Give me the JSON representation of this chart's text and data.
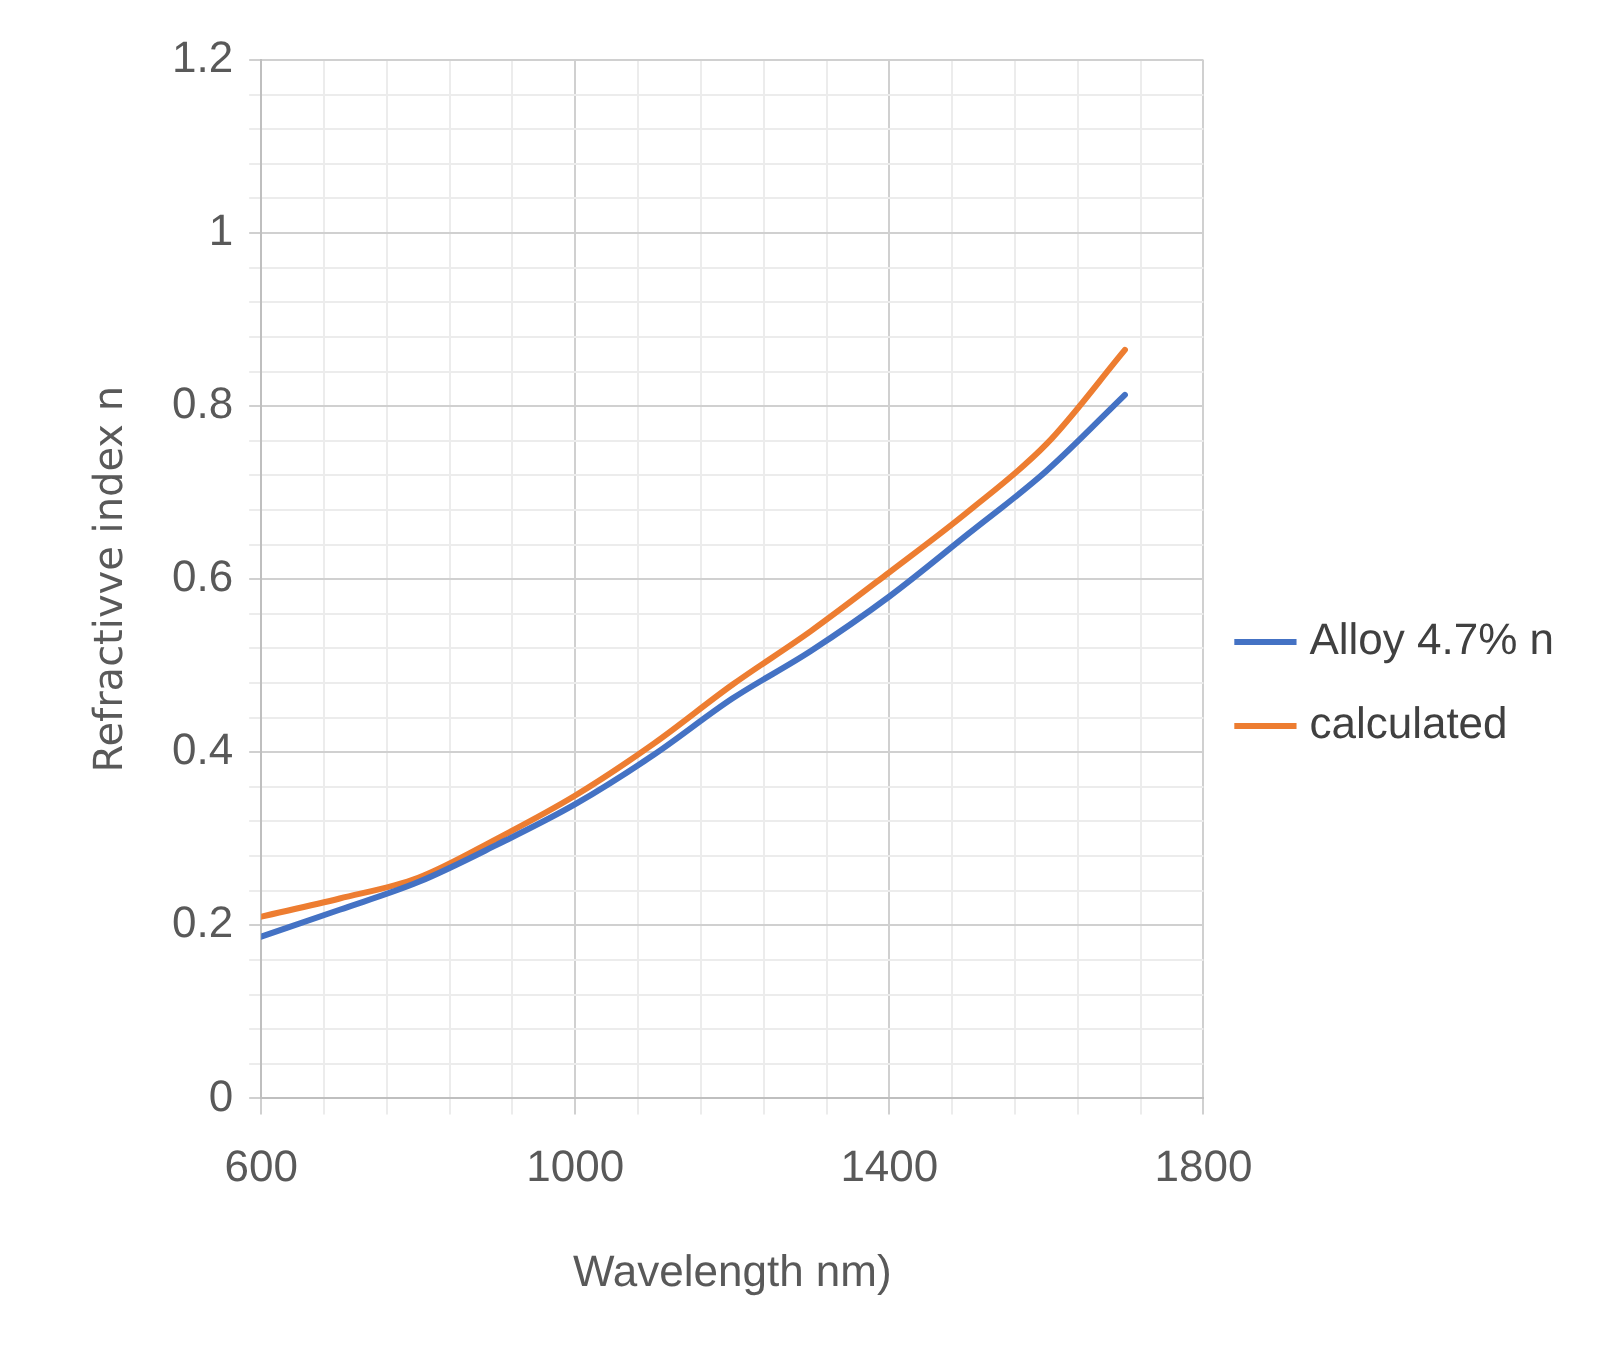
{
  "chart_data": {
    "type": "line",
    "xlabel": "Wavelength nm)",
    "ylabel": "Refractivve index n",
    "x": [
      600,
      700,
      800,
      900,
      1000,
      1100,
      1200,
      1300,
      1400,
      1500,
      1600,
      1700
    ],
    "series": [
      {
        "name": "Alloy 4.7% n",
        "color": "#4472c4",
        "values": [
          0.187,
          0.218,
          0.25,
          0.293,
          0.34,
          0.397,
          0.462,
          0.517,
          0.58,
          0.652,
          0.725,
          0.813
        ]
      },
      {
        "name": "calculated",
        "color": "#ed7d31",
        "values": [
          0.21,
          0.231,
          0.255,
          0.3,
          0.35,
          0.41,
          0.478,
          0.54,
          0.608,
          0.678,
          0.756,
          0.865
        ]
      }
    ],
    "xlim": [
      600,
      1800
    ],
    "xticks": [
      600,
      {
        "value": 680,
        "label": null
      },
      {
        "value": 760,
        "label": null
      },
      {
        "value": 840,
        "label": null
      },
      {
        "value": 920,
        "label": null
      },
      1000,
      {
        "value": 1080,
        "label": null
      },
      {
        "value": 1160,
        "label": null
      },
      {
        "value": 1240,
        "label": null
      },
      {
        "value": 1320,
        "label": null
      },
      1400,
      {
        "value": 1480,
        "label": null
      },
      {
        "value": 1560,
        "label": null
      },
      {
        "value": 1640,
        "label": null
      },
      {
        "value": 1720,
        "label": null
      },
      1800
    ],
    "ylim": [
      0,
      1.2
    ],
    "yticks": [
      0,
      {
        "value": 0.04,
        "label": null
      },
      {
        "value": 0.08,
        "label": null
      },
      {
        "value": 0.12,
        "label": null
      },
      {
        "value": 0.16,
        "label": null
      },
      0.2,
      {
        "value": 0.24,
        "label": null
      },
      {
        "value": 0.28,
        "label": null
      },
      {
        "value": 0.32,
        "label": null
      },
      {
        "value": 0.36,
        "label": null
      },
      0.4,
      {
        "value": 0.44,
        "label": null
      },
      {
        "value": 0.48,
        "label": null
      },
      {
        "value": 0.52,
        "label": null
      },
      {
        "value": 0.56,
        "label": null
      },
      0.6,
      {
        "value": 0.64,
        "label": null
      },
      {
        "value": 0.68,
        "label": null
      },
      {
        "value": 0.72,
        "label": null
      },
      {
        "value": 0.76,
        "label": null
      },
      0.8,
      {
        "value": 0.84,
        "label": null
      },
      {
        "value": 0.88,
        "label": null
      },
      {
        "value": 0.92,
        "label": null
      },
      {
        "value": 0.96,
        "label": null
      },
      1,
      {
        "value": 1.04,
        "label": null
      },
      {
        "value": 1.08,
        "label": null
      },
      {
        "value": 1.12,
        "label": null
      },
      {
        "value": 1.16,
        "label": null
      },
      1.2
    ],
    "grid": true,
    "legend": "right",
    "marker": "none",
    "line_style": "solid"
  }
}
